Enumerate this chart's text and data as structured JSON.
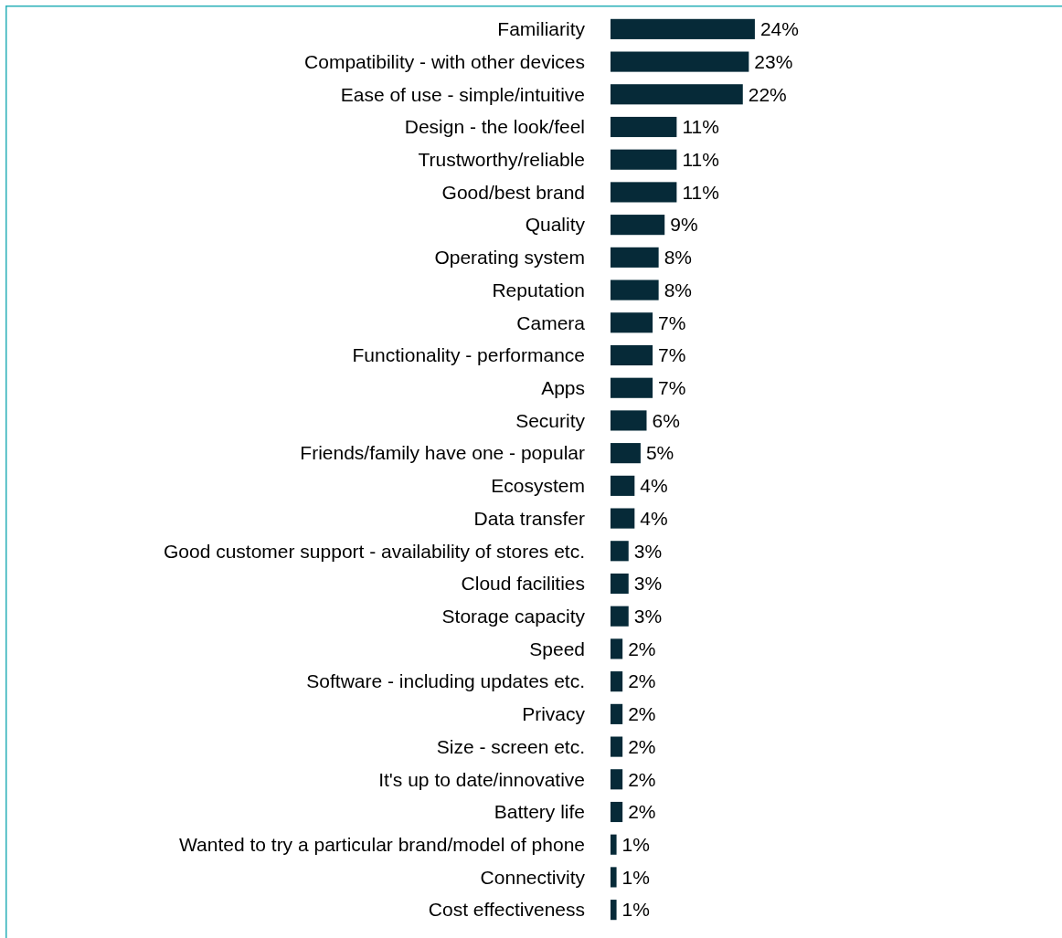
{
  "chart_data": {
    "type": "bar",
    "orientation": "horizontal",
    "value_labels": [
      "24%",
      "23%",
      "22%",
      "11%",
      "11%",
      "11%",
      "9%",
      "8%",
      "8%",
      "7%",
      "7%",
      "7%",
      "6%",
      "5%",
      "4%",
      "4%",
      "3%",
      "3%",
      "3%",
      "2%",
      "2%",
      "2%",
      "2%",
      "2%",
      "2%",
      "1%",
      "1%",
      "1%"
    ],
    "color": "#062a38",
    "categories": [
      "Familiarity",
      "Compatibility - with other devices",
      "Ease of use - simple/intuitive",
      "Design - the look/feel",
      "Trustworthy/reliable",
      "Good/best brand",
      "Quality",
      "Operating system",
      "Reputation",
      "Camera",
      "Functionality - performance",
      "Apps",
      "Security",
      "Friends/family have one - popular",
      "Ecosystem",
      "Data transfer",
      "Good customer support - availability of stores etc.",
      "Cloud facilities",
      "Storage capacity",
      "Speed",
      "Software - including updates etc.",
      "Privacy",
      "Size - screen etc.",
      "It's up to date/innovative",
      "Battery life",
      "Wanted to try a particular brand/model of phone",
      "Connectivity",
      "Cost effectiveness"
    ],
    "values": [
      24,
      23,
      22,
      11,
      11,
      11,
      9,
      8,
      8,
      7,
      7,
      7,
      6,
      5,
      4,
      4,
      3,
      3,
      3,
      2,
      2,
      2,
      2,
      2,
      2,
      1,
      1,
      1
    ]
  }
}
